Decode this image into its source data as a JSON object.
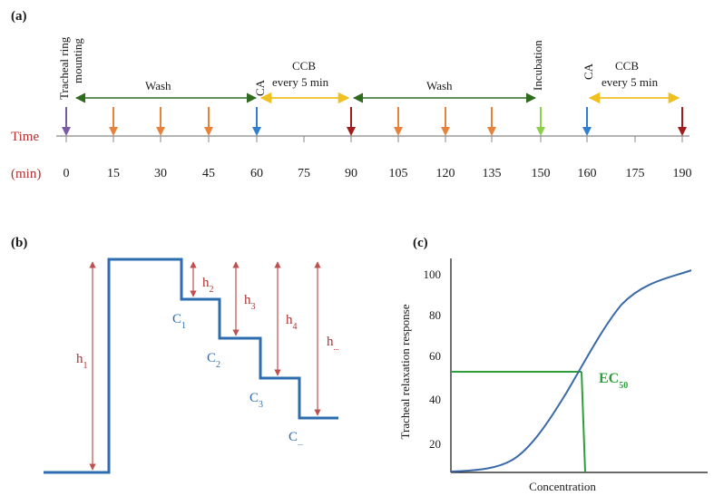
{
  "colors": {
    "axis": "#888888",
    "purple": "#7a5aa6",
    "orange": "#e8813a",
    "blue": "#2f7fd0",
    "darkred": "#a31c1c",
    "lightgreen": "#8ccf4a",
    "wash_arrow": "#2f6b1f",
    "ccb_arrow": "#f0c020",
    "step": "#2c6db0",
    "h_arrow": "#c05050",
    "curve": "#3a6aa8",
    "ec50": "#2e9e3a"
  },
  "panel_a": {
    "label": "(a)",
    "time_label": "Time",
    "unit_label": "(min)",
    "ticks": [
      "0",
      "15",
      "30",
      "45",
      "60",
      "75",
      "90",
      "105",
      "120",
      "135",
      "150",
      "160",
      "175",
      "190"
    ],
    "marker_colors": [
      "purple",
      "orange",
      "orange",
      "orange",
      "blue",
      "none",
      "darkred",
      "orange",
      "orange",
      "orange",
      "lightgreen",
      "blue",
      "none",
      "darkred"
    ],
    "annotations": {
      "tracheal_line1": "Tracheal ring",
      "tracheal_line2": "mounting",
      "wash1": "Wash",
      "ca1": "CA",
      "ccb1_line1": "CCB",
      "ccb1_line2": "every 5 min",
      "wash2": "Wash",
      "incubation": "Incubation",
      "ca2": "CA",
      "ccb2_line1": "CCB",
      "ccb2_line2": "every 5 min"
    }
  },
  "panel_b": {
    "label": "(b)",
    "h_labels": [
      "h",
      "h",
      "h",
      "h",
      "h"
    ],
    "h_subs": [
      "1",
      "2",
      "3",
      "4",
      "..."
    ],
    "c_labels": [
      "C",
      "C",
      "C",
      "C"
    ],
    "c_subs": [
      "1",
      "2",
      "3",
      "..."
    ]
  },
  "panel_c": {
    "label": "(c)",
    "ylabel": "Tracheal relaxation response",
    "xlabel": "Concentration",
    "yticks": [
      "100",
      "80",
      "60",
      "40",
      "20"
    ],
    "ec_label": "EC",
    "ec_sub": "50"
  },
  "chart_data": {
    "type": "line",
    "title": "",
    "xlabel": "Concentration",
    "ylabel": "Tracheal relaxation response",
    "ylim": [
      0,
      100
    ],
    "yticks": [
      20,
      40,
      60,
      80,
      100
    ],
    "ec50_response": 50
  }
}
